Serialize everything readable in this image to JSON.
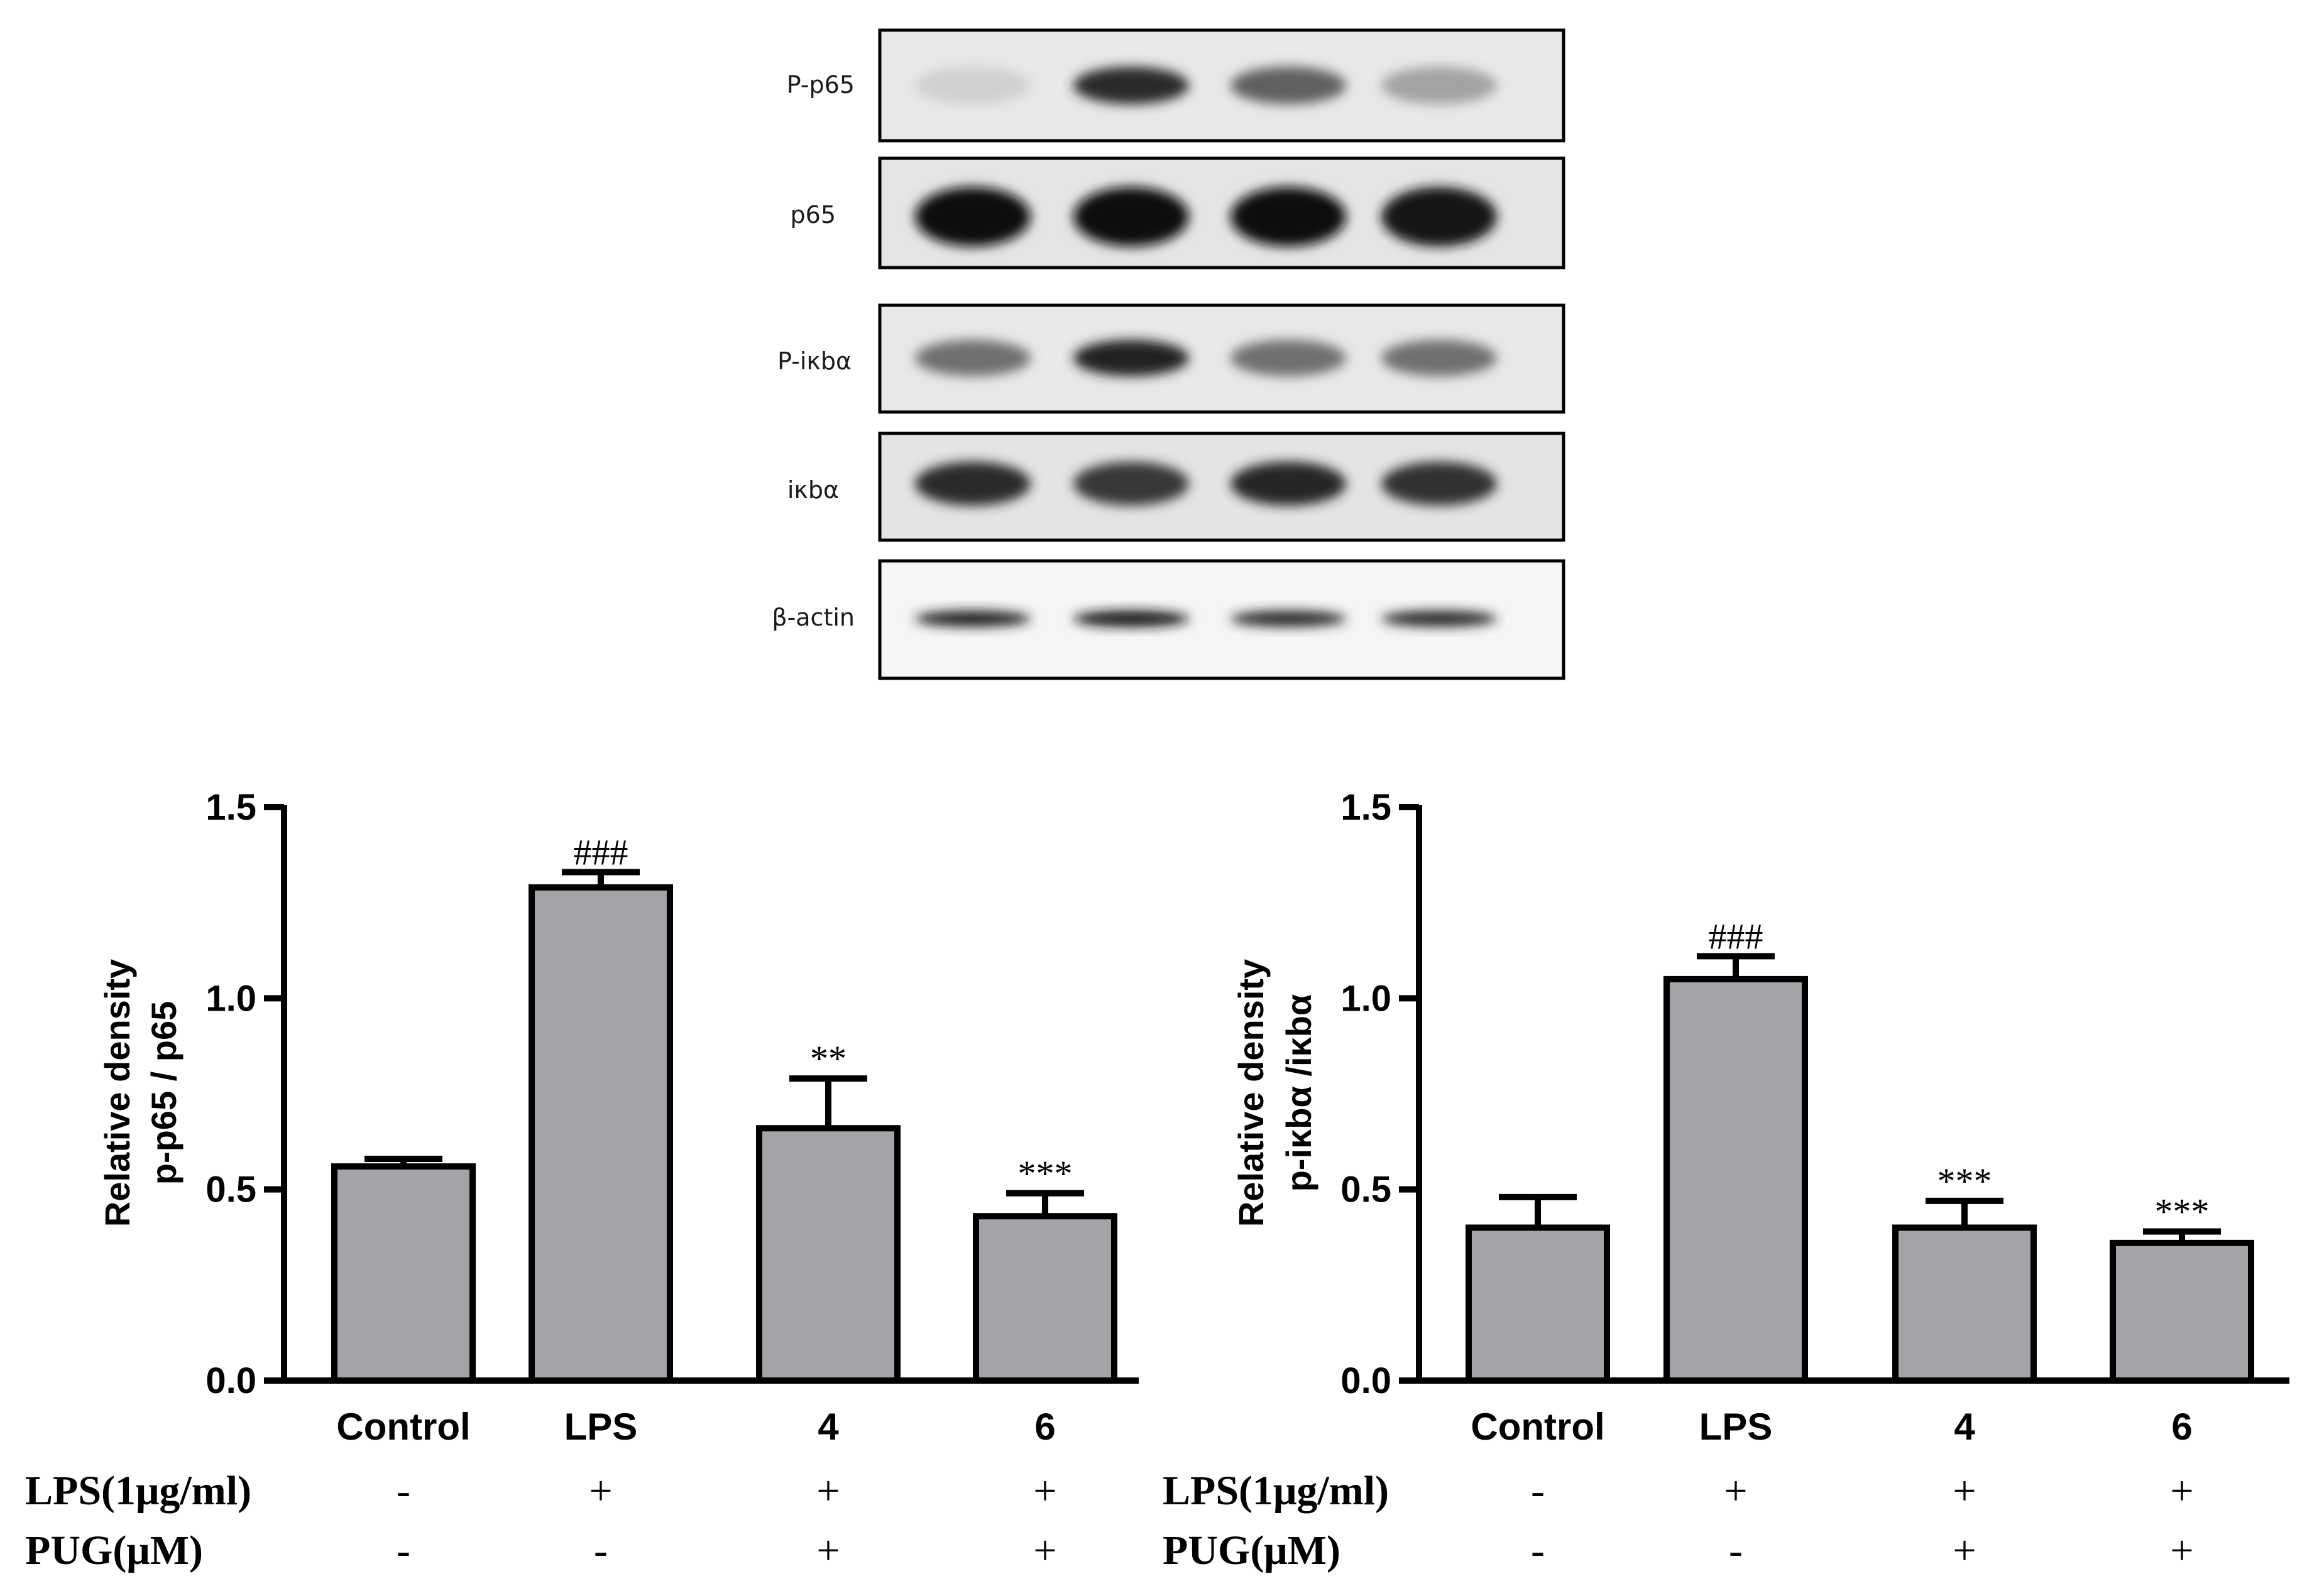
{
  "blot": {
    "rows": [
      {
        "label": "P-p65",
        "intensity": [
          0.12,
          0.85,
          0.62,
          0.32
        ]
      },
      {
        "label": "p65",
        "intensity": [
          0.98,
          0.98,
          0.98,
          0.95
        ]
      },
      {
        "label": "P-iκbα",
        "intensity": [
          0.55,
          0.9,
          0.55,
          0.55
        ]
      },
      {
        "label": "iκbα",
        "intensity": [
          0.85,
          0.8,
          0.88,
          0.82
        ]
      },
      {
        "label": "β-actin",
        "intensity": [
          0.9,
          0.95,
          0.85,
          0.85
        ]
      }
    ]
  },
  "colors": {
    "bar_fill": "#a3a3a8",
    "stroke": "#000000"
  },
  "treatments": [
    {
      "label": "LPS(1μg/ml)",
      "signs": [
        "-",
        "+",
        "+",
        "+"
      ]
    },
    {
      "label": "PUG(μM)",
      "signs": [
        "-",
        "-",
        "+",
        "+"
      ]
    }
  ],
  "chart_data": [
    {
      "type": "bar",
      "categories": [
        "Control",
        "LPS",
        "4",
        "6"
      ],
      "values": [
        0.56,
        1.29,
        0.66,
        0.43
      ],
      "errors": [
        0.02,
        0.04,
        0.13,
        0.06
      ],
      "annotations": [
        "",
        "###",
        "**",
        "***"
      ],
      "ylabel_line1": "Relative density",
      "ylabel_line2": "p-p65 / p65",
      "ylim": [
        0,
        1.5
      ],
      "yticks": [
        "0.0",
        "0.5",
        "1.0",
        "1.5"
      ]
    },
    {
      "type": "bar",
      "categories": [
        "Control",
        "LPS",
        "4",
        "6"
      ],
      "values": [
        0.4,
        1.05,
        0.4,
        0.36
      ],
      "errors": [
        0.08,
        0.06,
        0.07,
        0.03
      ],
      "annotations": [
        "",
        "###",
        "***",
        "***"
      ],
      "ylabel_line1": "Relative density",
      "ylabel_line2": "p-iκbα /iκbα",
      "ylim": [
        0,
        1.5
      ],
      "yticks": [
        "0.0",
        "0.5",
        "1.0",
        "1.5"
      ]
    }
  ]
}
